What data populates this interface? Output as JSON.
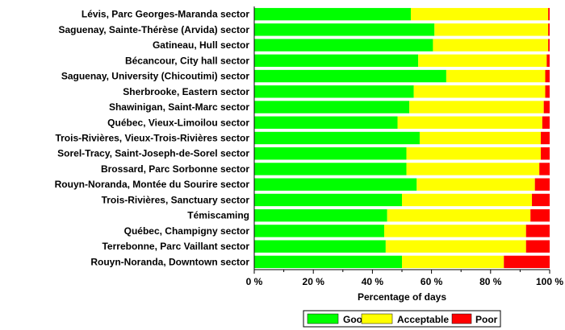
{
  "chart_data": {
    "type": "bar",
    "orientation": "horizontal",
    "stacked": true,
    "categories": [
      "Lévis, Parc Georges-Maranda sector",
      "Saguenay, Sainte-Thérèse (Arvida) sector",
      "Gatineau, Hull sector",
      "Bécancour, City hall sector",
      "Saguenay, University (Chicoutimi) sector",
      "Sherbrooke, Eastern sector",
      "Shawinigan, Saint-Marc sector",
      "Québec, Vieux-Limoilou sector",
      "Trois-Rivières, Vieux-Trois-Rivières sector",
      "Sorel-Tracy, Saint-Joseph-de-Sorel sector",
      "Brossard, Parc Sorbonne sector",
      "Rouyn-Noranda, Montée du Sourire sector",
      "Trois-Rivières, Sanctuary sector",
      "Témiscaming",
      "Québec, Champigny sector",
      "Terrebonne, Parc Vaillant sector",
      "Rouyn-Noranda, Downtown sector"
    ],
    "series": [
      {
        "name": "Good",
        "color": "#00ff00",
        "values": [
          53,
          61,
          60.5,
          55.5,
          65,
          54,
          52.5,
          48.5,
          56,
          51.5,
          51.5,
          55,
          50,
          45,
          44,
          44.5,
          50
        ]
      },
      {
        "name": "Acceptable",
        "color": "#ffff00",
        "values": [
          46.5,
          38.5,
          39,
          43.5,
          33.5,
          44.5,
          45.5,
          49,
          41,
          45.5,
          45,
          40,
          44,
          48.5,
          48,
          47.5,
          34.5
        ]
      },
      {
        "name": "Poor",
        "color": "#ff0000",
        "values": [
          0.5,
          0.5,
          0.5,
          1,
          1.5,
          1.5,
          2,
          2.5,
          3,
          3,
          3.5,
          5,
          6,
          6.5,
          8,
          8,
          15.5
        ]
      }
    ],
    "xlim": [
      0,
      100
    ],
    "xticks": [
      "0 %",
      "20 %",
      "40 %",
      "60 %",
      "80 %",
      "100 %"
    ],
    "xtick_values": [
      0,
      20,
      40,
      60,
      80,
      100
    ],
    "xlabel": "Percentage of days",
    "ylabel": "",
    "title": "",
    "grid": false,
    "legend_position": "bottom"
  }
}
